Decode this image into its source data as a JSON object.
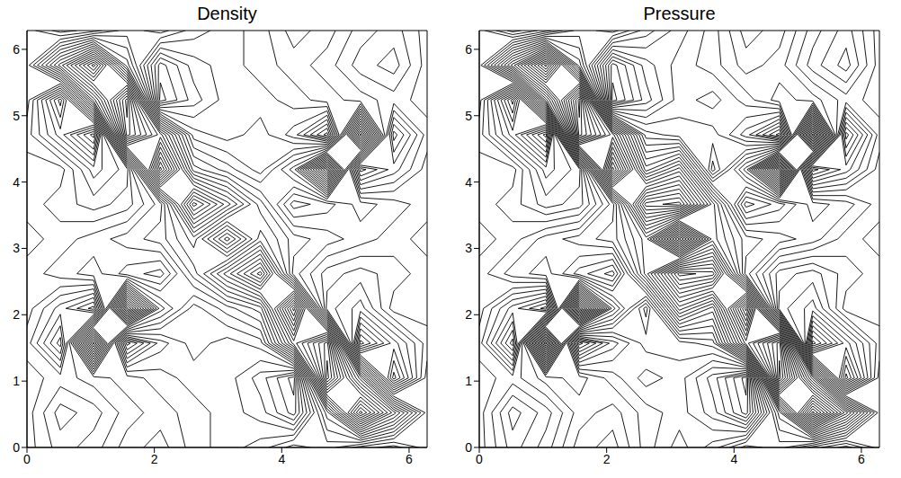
{
  "chart_data": [
    {
      "type": "contour",
      "title": "Density",
      "color": "#000000",
      "xlim": [
        0,
        6.2832
      ],
      "ylim": [
        0,
        6.2832
      ],
      "xticks": [
        0,
        2,
        4,
        6
      ],
      "yticks": [
        0,
        1,
        2,
        3,
        4,
        5,
        6
      ],
      "x": [
        0,
        0.5236,
        1.0472,
        1.5708,
        2.0944,
        2.618,
        3.1416,
        3.6652,
        4.1888,
        4.7124,
        5.236,
        5.7596,
        6.2832
      ],
      "y": [
        0,
        0.5236,
        1.0472,
        1.5708,
        2.0944,
        2.618,
        3.1416,
        3.6652,
        4.1888,
        4.7124,
        5.236,
        5.7596,
        6.2832
      ],
      "levels": [
        1.55,
        1.65,
        1.75,
        1.85,
        1.95,
        2.05,
        2.15,
        2.25,
        2.35,
        2.45,
        2.55,
        2.65,
        2.75,
        2.85,
        2.95,
        3.05,
        3.15,
        3.25,
        3.35,
        3.45,
        3.55,
        3.65,
        3.75,
        3.85,
        3.95,
        4.05,
        4.15,
        4.25,
        4.35
      ],
      "z": [
        [
          2.6,
          2.4,
          2.5,
          2.7,
          2.8,
          2.6,
          2.5,
          2.6,
          2.8,
          2.7,
          2.5,
          2.4,
          2.6
        ],
        [
          2.6,
          2.3,
          2.4,
          2.6,
          2.7,
          2.6,
          2.5,
          2.4,
          2.1,
          3.0,
          4.2,
          3.4,
          2.6
        ],
        [
          2.6,
          2.5,
          2.6,
          2.7,
          2.6,
          2.5,
          2.5,
          2.3,
          2.0,
          4.3,
          3.2,
          1.8,
          2.6
        ],
        [
          2.5,
          2.0,
          4.0,
          1.9,
          2.4,
          2.6,
          2.5,
          2.6,
          3.6,
          4.2,
          1.6,
          2.1,
          2.5
        ],
        [
          2.6,
          2.3,
          2.0,
          4.3,
          3.0,
          2.6,
          2.8,
          3.0,
          4.3,
          2.4,
          2.2,
          2.6,
          2.6
        ],
        [
          2.6,
          2.7,
          2.8,
          2.6,
          2.5,
          3.0,
          3.5,
          4.0,
          2.8,
          2.5,
          2.4,
          2.5,
          2.6
        ],
        [
          2.5,
          2.6,
          2.7,
          2.8,
          2.9,
          3.2,
          2.6,
          3.2,
          2.9,
          2.8,
          2.7,
          2.6,
          2.5
        ],
        [
          2.6,
          2.5,
          2.4,
          2.5,
          2.8,
          4.0,
          3.5,
          3.0,
          2.5,
          2.6,
          2.8,
          2.7,
          2.6
        ],
        [
          2.6,
          2.6,
          2.2,
          2.4,
          4.3,
          3.0,
          2.8,
          2.6,
          3.0,
          4.3,
          2.0,
          2.3,
          2.6
        ],
        [
          2.5,
          2.1,
          1.6,
          4.2,
          3.6,
          2.6,
          2.5,
          2.6,
          2.4,
          1.9,
          4.0,
          2.0,
          2.5
        ],
        [
          2.6,
          1.8,
          3.2,
          4.3,
          2.0,
          2.3,
          2.5,
          2.5,
          2.6,
          2.7,
          2.6,
          2.5,
          2.6
        ],
        [
          2.6,
          3.4,
          4.2,
          3.0,
          2.1,
          2.4,
          2.5,
          2.6,
          2.7,
          2.6,
          2.4,
          2.3,
          2.6
        ],
        [
          2.6,
          2.4,
          2.5,
          2.7,
          2.8,
          2.6,
          2.5,
          2.6,
          2.8,
          2.7,
          2.5,
          2.4,
          2.6
        ]
      ]
    },
    {
      "type": "contour",
      "title": "Pressure",
      "color": "#000000",
      "xlim": [
        0,
        6.2832
      ],
      "ylim": [
        0,
        6.2832
      ],
      "xticks": [
        0,
        2,
        4,
        6
      ],
      "yticks": [
        0,
        1,
        2,
        3,
        4,
        5,
        6
      ],
      "x": [
        0,
        0.5236,
        1.0472,
        1.5708,
        2.0944,
        2.618,
        3.1416,
        3.6652,
        4.1888,
        4.7124,
        5.236,
        5.7596,
        6.2832
      ],
      "y": [
        0,
        0.5236,
        1.0472,
        1.5708,
        2.0944,
        2.618,
        3.1416,
        3.6652,
        4.1888,
        4.7124,
        5.236,
        5.7596,
        6.2832
      ],
      "levels": [
        1.45,
        1.55,
        1.65,
        1.75,
        1.85,
        1.95,
        2.05,
        2.15,
        2.25,
        2.35,
        2.45,
        2.55,
        2.65,
        2.75,
        2.85,
        2.95,
        3.05,
        3.15,
        3.25,
        3.35,
        3.45,
        3.55,
        3.65,
        3.75,
        3.85,
        3.95,
        4.05,
        4.15,
        4.25,
        4.35,
        4.45,
        4.55,
        4.65
      ],
      "z": [
        [
          2.6,
          2.3,
          2.5,
          2.8,
          2.9,
          2.6,
          2.4,
          2.6,
          2.9,
          2.8,
          2.5,
          2.3,
          2.6
        ],
        [
          2.6,
          2.2,
          2.4,
          2.7,
          2.8,
          2.6,
          2.5,
          2.3,
          1.9,
          3.1,
          4.6,
          3.6,
          2.6
        ],
        [
          2.6,
          2.5,
          2.7,
          2.8,
          2.6,
          2.4,
          2.5,
          2.2,
          1.8,
          4.7,
          3.3,
          1.6,
          2.6
        ],
        [
          2.5,
          1.8,
          4.4,
          1.8,
          2.3,
          2.6,
          2.6,
          2.7,
          3.9,
          4.6,
          1.4,
          2.0,
          2.5
        ],
        [
          2.6,
          2.2,
          1.9,
          4.6,
          3.1,
          2.4,
          3.6,
          3.2,
          4.6,
          2.3,
          2.1,
          2.6,
          2.6
        ],
        [
          2.6,
          2.8,
          2.9,
          2.6,
          2.4,
          3.4,
          4.4,
          4.3,
          2.9,
          2.4,
          2.3,
          2.5,
          2.6
        ],
        [
          2.5,
          2.6,
          2.8,
          2.9,
          3.0,
          3.4,
          2.2,
          3.4,
          3.0,
          2.9,
          2.8,
          2.6,
          2.5
        ],
        [
          2.6,
          2.5,
          2.3,
          2.4,
          2.9,
          4.3,
          4.4,
          3.4,
          2.4,
          2.6,
          2.9,
          2.8,
          2.6
        ],
        [
          2.6,
          2.6,
          2.1,
          2.3,
          4.6,
          3.2,
          3.6,
          2.4,
          3.1,
          4.6,
          1.9,
          2.2,
          2.6
        ],
        [
          2.5,
          2.0,
          1.4,
          4.6,
          3.9,
          2.7,
          2.6,
          2.6,
          2.3,
          1.8,
          4.4,
          1.8,
          2.5
        ],
        [
          2.6,
          1.6,
          3.3,
          4.7,
          1.8,
          2.2,
          2.5,
          2.4,
          2.6,
          2.8,
          2.7,
          2.5,
          2.6
        ],
        [
          2.6,
          3.6,
          4.6,
          3.1,
          1.9,
          2.3,
          2.5,
          2.6,
          2.8,
          2.7,
          2.4,
          2.2,
          2.6
        ],
        [
          2.6,
          2.3,
          2.5,
          2.8,
          2.9,
          2.6,
          2.4,
          2.6,
          2.9,
          2.8,
          2.5,
          2.3,
          2.6
        ]
      ]
    }
  ]
}
